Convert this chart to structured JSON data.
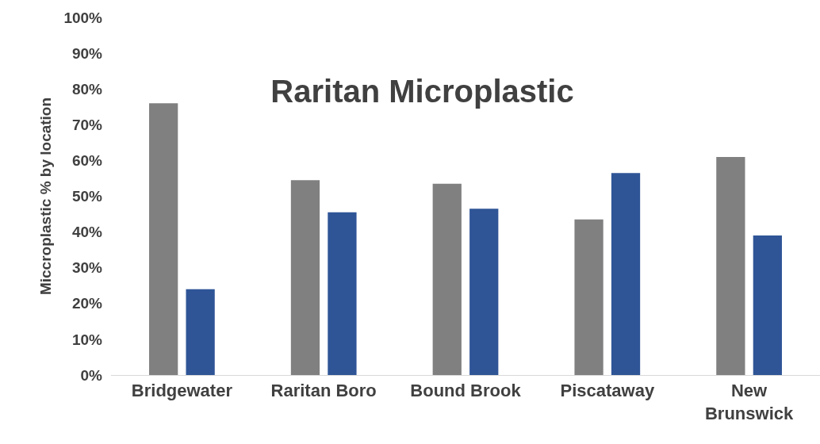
{
  "chart_data": {
    "type": "bar",
    "title": "Raritan Microplastic",
    "ylabel": "Miccroplastic % by location",
    "categories": [
      "Bridgewater",
      "Raritan Boro",
      "Bound Brook",
      "Piscataway",
      "New Brunswick"
    ],
    "series": [
      {
        "color": "#808080",
        "values": [
          76,
          54.5,
          53.5,
          43.5,
          61
        ]
      },
      {
        "color": "#2f5597",
        "values": [
          24,
          45.5,
          46.5,
          56.5,
          39
        ]
      }
    ],
    "ylim": [
      0,
      100
    ],
    "yticks": [
      {
        "value": 0,
        "label": "0%"
      },
      {
        "value": 10,
        "label": "10%"
      },
      {
        "value": 20,
        "label": "20%"
      },
      {
        "value": 30,
        "label": "30%"
      },
      {
        "value": 40,
        "label": "40%"
      },
      {
        "value": 50,
        "label": "50%"
      },
      {
        "value": 60,
        "label": "60%"
      },
      {
        "value": 70,
        "label": "70%"
      },
      {
        "value": 80,
        "label": "80%"
      },
      {
        "value": 90,
        "label": "90%"
      },
      {
        "value": 100,
        "label": "100%"
      }
    ],
    "grid": false,
    "legend": false
  }
}
